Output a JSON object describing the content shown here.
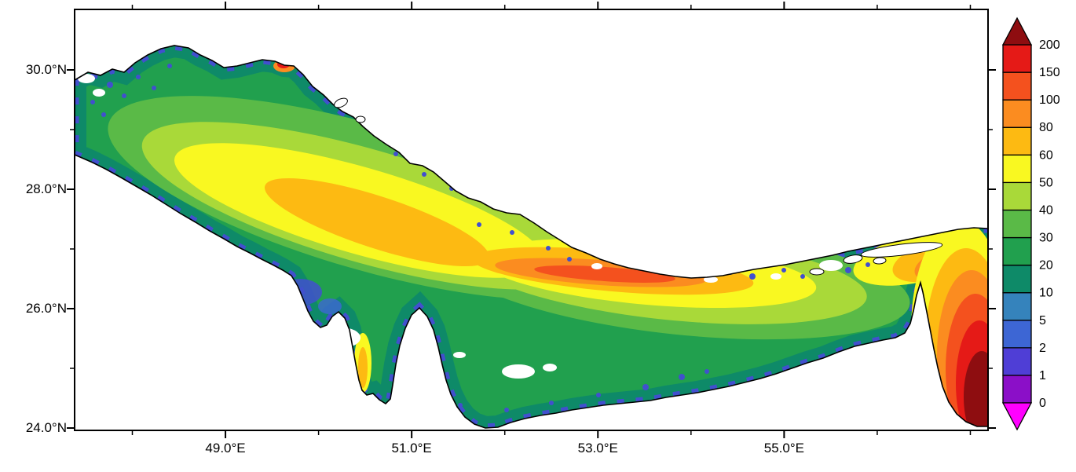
{
  "figure": {
    "region": "Persian Gulf and Strait of Hormuz",
    "plot_type": "gridded color-shaded field map with discrete color scale"
  },
  "axes": {
    "lat_ticks": [
      {
        "value": 30,
        "label": "30.0°N"
      },
      {
        "value": 28,
        "label": "28.0°N"
      },
      {
        "value": 26,
        "label": "26.0°N"
      },
      {
        "value": 24,
        "label": "24.0°N"
      }
    ],
    "lat_minor_ticks": [
      25,
      27,
      29
    ],
    "lon_ticks": [
      {
        "value": 49,
        "label": "49.0°E"
      },
      {
        "value": 51,
        "label": "51.0°E"
      },
      {
        "value": 53,
        "label": "53.0°E"
      },
      {
        "value": 55,
        "label": "55.0°E"
      }
    ],
    "lon_minor_ticks": [
      48,
      50,
      52,
      54,
      56,
      57
    ],
    "lon_range": [
      47.38,
      57.19
    ],
    "lat_range": [
      23.96,
      31.05
    ]
  },
  "colorbar": {
    "levels_bottom_to_top": [
      "0",
      "1",
      "2",
      "5",
      "10",
      "20",
      "30",
      "40",
      "50",
      "60",
      "80",
      "100",
      "150",
      "200"
    ],
    "block_colors_bottom_to_top": [
      "#8B0FC8",
      "#4F3ED6",
      "#3D66D4",
      "#3583BC",
      "#0E8A68",
      "#21A04E",
      "#5ABA47",
      "#A9D939",
      "#F9F821",
      "#FDBA12",
      "#FB8C20",
      "#F4511E",
      "#E51A17"
    ],
    "arrow_top_color": "#8E0D10",
    "arrow_bottom_color": "#FF00FF",
    "outline_color": "#000000"
  },
  "chart_data": {
    "type": "heatmap",
    "title": "",
    "xlabel": "",
    "ylabel": "",
    "x_tick_labels": [
      "49.0°E",
      "51.0°E",
      "53.0°E",
      "55.0°E"
    ],
    "y_tick_labels": [
      "24.0°N",
      "26.0°N",
      "28.0°N",
      "30.0°N"
    ],
    "x_range_deg_east": [
      47.38,
      57.19
    ],
    "y_range_deg_north": [
      23.96,
      31.05
    ],
    "colorbar_levels": [
      0,
      1,
      2,
      5,
      10,
      20,
      30,
      40,
      50,
      60,
      80,
      100,
      150,
      200
    ],
    "colorbar_colors": [
      "#8B0FC8",
      "#4F3ED6",
      "#3D66D4",
      "#3583BC",
      "#0E8A68",
      "#21A04E",
      "#5ABA47",
      "#A9D939",
      "#F9F821",
      "#FDBA12",
      "#FB8C20",
      "#F4511E",
      "#E51A17"
    ],
    "over_color": "#8E0D10",
    "under_color": "#FF00FF",
    "legend_position": "right",
    "grid": false,
    "notable_features": [
      "green field over most of the Persian Gulf basin",
      "yellow-orange band along the central axis of the Gulf",
      "red-orange core near 52-54E, 26.5N",
      "intense red / dark-red maximum in the Gulf of Oman at the lower right",
      "blue low values fringing the coasts",
      "white land: Qatar peninsula, Musandam peninsula, islands"
    ]
  }
}
